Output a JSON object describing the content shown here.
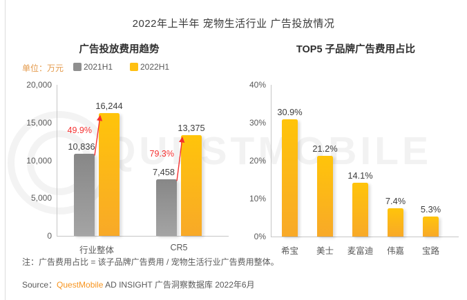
{
  "page": {
    "title": "2022年上半年 宠物生活行业 广告投放情况",
    "note": "注：广告费用占比 = 该子品牌广告费用 / 宠物生活行业广告费用整体。",
    "source_prefix": "Source：",
    "source_brand": "QuestMobile",
    "source_suffix": " AD INSIGHT 广告洞察数据库 2022年6月",
    "watermark_text": "QUESTMOBILE"
  },
  "colors": {
    "bar_yellow_top": "#FFC40A",
    "bar_yellow_bottom": "#F8A928",
    "bar_gray_top": "#878787",
    "bar_gray_bottom": "#A4A4A4",
    "legend_gray": "#8F8F8F",
    "legend_yellow": "#FFC011",
    "growth_red": "#F43030",
    "unit_orange": "#E49A4B",
    "brand_orange": "#F7941E",
    "axis_gray": "#C6C6C6",
    "watermark_gray": "#F2F2F2"
  },
  "legend": {
    "unit_label": "单位：万元",
    "items": [
      {
        "label": "2021H1",
        "color": "#8F8F8F"
      },
      {
        "label": "2022H1",
        "color": "#FFC011"
      }
    ]
  },
  "chart_data": [
    {
      "type": "bar",
      "title": "广告投放费用趋势",
      "unit": "万元",
      "categories": [
        "行业整体",
        "CR5"
      ],
      "series": [
        {
          "name": "2021H1",
          "values": [
            10836,
            7458
          ],
          "labels": [
            "10,836",
            "7,458"
          ]
        },
        {
          "name": "2022H1",
          "values": [
            16244,
            13375
          ],
          "labels": [
            "16,244",
            "13,375"
          ]
        }
      ],
      "growth_labels": [
        "49.9%",
        "79.3%"
      ],
      "ylim": [
        0,
        20000
      ],
      "yticks": [
        "20,000",
        "15,000",
        "10,000",
        "5,000",
        "0"
      ],
      "grid": false,
      "legend_position": "top"
    },
    {
      "type": "bar",
      "title": "TOP5 子品牌广告费用占比",
      "categories": [
        "希宝",
        "美士",
        "麦富迪",
        "伟嘉",
        "宝路"
      ],
      "values": [
        30.9,
        21.2,
        14.1,
        7.4,
        5.3
      ],
      "value_labels": [
        "30.9%",
        "21.2%",
        "14.1%",
        "7.4%",
        "5.3%"
      ],
      "ylim": [
        0,
        40
      ],
      "yticks": [
        "40%",
        "30%",
        "20%",
        "10%",
        "0%"
      ],
      "grid": false
    }
  ]
}
